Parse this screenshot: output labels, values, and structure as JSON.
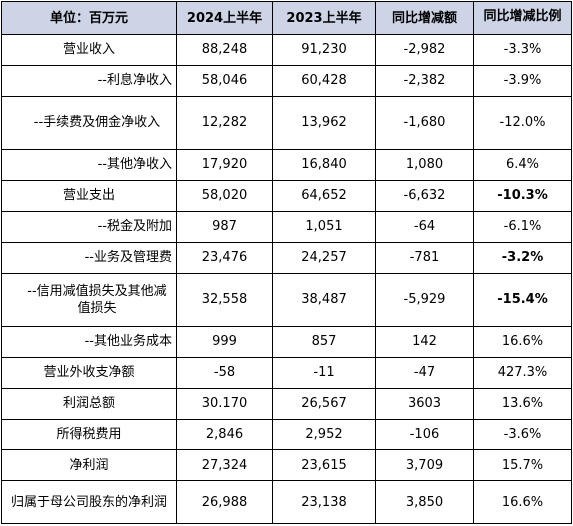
{
  "table": {
    "headers": [
      "单位：百万元",
      "2024上半年",
      "2023上半年",
      "同比增减额",
      "同比增减比例"
    ],
    "rows": [
      {
        "label": "营业收入",
        "sub": false,
        "c2024": "88,248",
        "c2023": "91,230",
        "diff": "-2,982",
        "ratio": "-3.3%",
        "ratio_bold": false
      },
      {
        "label": "--利息净收入",
        "sub": true,
        "c2024": "58,046",
        "c2023": "60,428",
        "diff": "-2,382",
        "ratio": "-3.9%",
        "ratio_bold": false
      },
      {
        "label": "--手续费及佣金净收入",
        "sub": true,
        "c2024": "12,282",
        "c2023": "13,962",
        "diff": "-1,680",
        "ratio": "-12.0%",
        "ratio_bold": false
      },
      {
        "label": "--其他净收入",
        "sub": true,
        "c2024": "17,920",
        "c2023": "16,840",
        "diff": "1,080",
        "ratio": "6.4%",
        "ratio_bold": false
      },
      {
        "label": "营业支出",
        "sub": false,
        "c2024": "58,020",
        "c2023": "64,652",
        "diff": "-6,632",
        "ratio": "-10.3%",
        "ratio_bold": true
      },
      {
        "label": "--税金及附加",
        "sub": true,
        "c2024": "987",
        "c2023": "1,051",
        "diff": "-64",
        "ratio": "-6.1%",
        "ratio_bold": false
      },
      {
        "label": "--业务及管理费",
        "sub": true,
        "c2024": "23,476",
        "c2023": "24,257",
        "diff": "-781",
        "ratio": "-3.2%",
        "ratio_bold": true
      },
      {
        "label": "--信用减值损失及其他减值损失",
        "sub": true,
        "c2024": "32,558",
        "c2023": "38,487",
        "diff": "-5,929",
        "ratio": "-15.4%",
        "ratio_bold": true
      },
      {
        "label": "--其他业务成本",
        "sub": true,
        "c2024": "999",
        "c2023": "857",
        "diff": "142",
        "ratio": "16.6%",
        "ratio_bold": false
      },
      {
        "label": "营业外收支净额",
        "sub": false,
        "c2024": "-58",
        "c2023": "-11",
        "diff": "-47",
        "ratio": "427.3%",
        "ratio_bold": false
      },
      {
        "label": "利润总额",
        "sub": false,
        "c2024": "30.170",
        "c2023": "26,567",
        "diff": "3603",
        "ratio": "13.6%",
        "ratio_bold": false
      },
      {
        "label": "所得税费用",
        "sub": false,
        "c2024": "2,846",
        "c2023": "2,952",
        "diff": "-106",
        "ratio": "-3.6%",
        "ratio_bold": false
      },
      {
        "label": "净利润",
        "sub": false,
        "c2024": "27,324",
        "c2023": "23,615",
        "diff": "3,709",
        "ratio": "15.7%",
        "ratio_bold": false
      },
      {
        "label": "归属于母公司股东的净利润",
        "sub": false,
        "c2024": "26,988",
        "c2023": "23,138",
        "diff": "3,850",
        "ratio": "16.6%",
        "ratio_bold": false
      }
    ]
  }
}
